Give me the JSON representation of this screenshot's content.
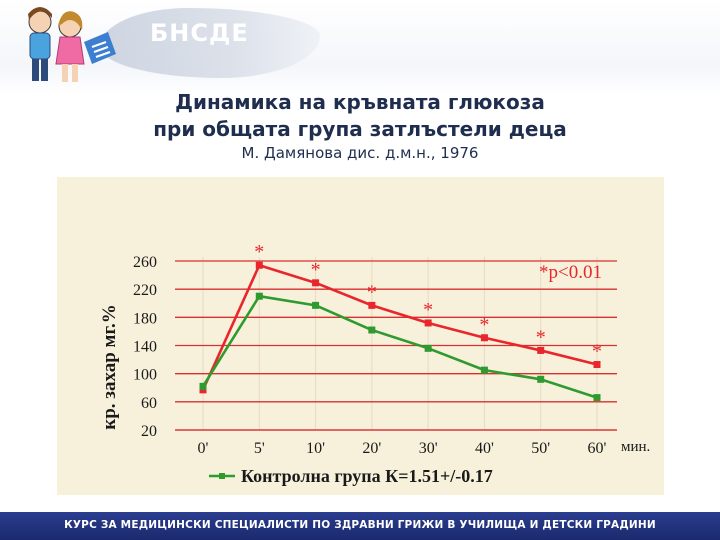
{
  "header": {
    "brand": "БНСДЕ",
    "title_line1": "Динамика на кръвната глюкоза",
    "title_line2": "при общата група затлъстели деца",
    "subtitle": "М. Дамянова дис. д.м.н., 1976"
  },
  "footer": {
    "text": "КУРС ЗА МЕДИЦИНСКИ СПЕЦИАЛИСТИ ПО ЗДРАВНИ ГРИЖИ В УЧИЛИЩА И ДЕТСКИ ГРАДИНИ"
  },
  "chart_data": {
    "type": "line",
    "title": "",
    "ylabel": "кр. захар мг.%",
    "xlabel": "мин.",
    "categories": [
      "0'",
      "5'",
      "10'",
      "20'",
      "30'",
      "40'",
      "50'",
      "60'"
    ],
    "ylim": [
      20,
      270
    ],
    "yticks": [
      260,
      220,
      180,
      140,
      100,
      60,
      20
    ],
    "grid": true,
    "series": [
      {
        "id": "obese",
        "color": "#e8262b",
        "values": [
          77,
          254,
          229,
          197,
          172,
          151,
          133,
          113
        ],
        "markers": [
          "",
          "*",
          "*",
          "*",
          "*",
          "*",
          "*",
          "*"
        ]
      },
      {
        "id": "control",
        "name": "Контролна група К=1.51+/-0.17",
        "color": "#2f9a2e",
        "values": [
          82,
          210,
          197,
          162,
          136,
          105,
          92,
          66
        ]
      }
    ],
    "annotation": "*p<0.01",
    "legend_placement": "bottom"
  }
}
